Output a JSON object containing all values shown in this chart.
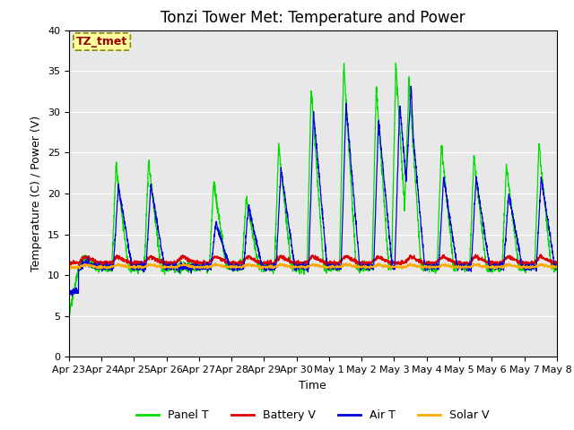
{
  "title": "Tonzi Tower Met: Temperature and Power",
  "xlabel": "Time",
  "ylabel": "Temperature (C) / Power (V)",
  "annotation": "TZ_tmet",
  "ylim": [
    0,
    40
  ],
  "colors": {
    "panel_t": "#00dd00",
    "battery_v": "#dd0000",
    "air_t": "#0000dd",
    "solar_v": "#ffaa00"
  },
  "legend": [
    "Panel T",
    "Battery V",
    "Air T",
    "Solar V"
  ],
  "plot_bg": "#e8e8e8",
  "fig_bg": "#ffffff",
  "title_fontsize": 12,
  "label_fontsize": 9,
  "tick_fontsize": 8
}
